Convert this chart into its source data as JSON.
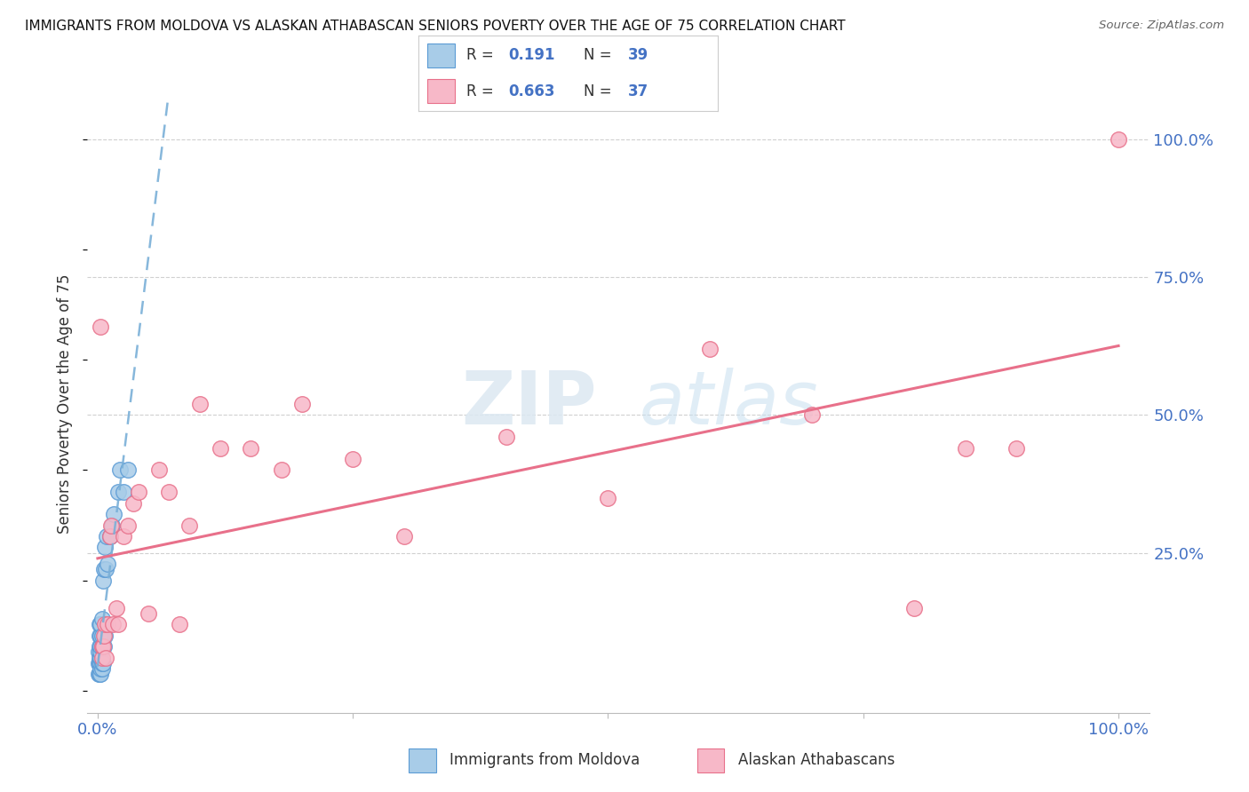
{
  "title": "IMMIGRANTS FROM MOLDOVA VS ALASKAN ATHABASCAN SENIORS POVERTY OVER THE AGE OF 75 CORRELATION CHART",
  "source": "Source: ZipAtlas.com",
  "ylabel": "Seniors Poverty Over the Age of 75",
  "legend_label1": "Immigrants from Moldova",
  "legend_label2": "Alaskan Athabascans",
  "R1": "0.191",
  "N1": "39",
  "R2": "0.663",
  "N2": "37",
  "color_blue": "#a8cce8",
  "color_pink": "#f7b8c8",
  "color_blue_edge": "#5b9bd5",
  "color_pink_edge": "#e8708a",
  "color_blue_line": "#7ab0d8",
  "color_pink_line": "#e8708a",
  "color_blue_text": "#4472c4",
  "watermark_zip": "ZIP",
  "watermark_atlas": "atlas",
  "blue_x": [
    0.001,
    0.001,
    0.001,
    0.002,
    0.002,
    0.002,
    0.002,
    0.002,
    0.002,
    0.003,
    0.003,
    0.003,
    0.003,
    0.003,
    0.003,
    0.003,
    0.003,
    0.004,
    0.004,
    0.004,
    0.004,
    0.004,
    0.005,
    0.005,
    0.005,
    0.006,
    0.006,
    0.007,
    0.007,
    0.008,
    0.009,
    0.01,
    0.012,
    0.014,
    0.016,
    0.02,
    0.022,
    0.025,
    0.03
  ],
  "blue_y": [
    0.03,
    0.05,
    0.07,
    0.03,
    0.05,
    0.06,
    0.08,
    0.1,
    0.12,
    0.03,
    0.04,
    0.05,
    0.06,
    0.07,
    0.08,
    0.1,
    0.12,
    0.04,
    0.05,
    0.08,
    0.1,
    0.13,
    0.05,
    0.08,
    0.2,
    0.08,
    0.22,
    0.1,
    0.26,
    0.22,
    0.28,
    0.23,
    0.28,
    0.3,
    0.32,
    0.36,
    0.4,
    0.36,
    0.4
  ],
  "pink_x": [
    0.003,
    0.004,
    0.004,
    0.005,
    0.006,
    0.007,
    0.008,
    0.01,
    0.012,
    0.013,
    0.015,
    0.018,
    0.02,
    0.025,
    0.03,
    0.035,
    0.04,
    0.05,
    0.06,
    0.07,
    0.08,
    0.09,
    0.1,
    0.12,
    0.15,
    0.18,
    0.2,
    0.25,
    0.3,
    0.4,
    0.5,
    0.6,
    0.7,
    0.8,
    0.85,
    0.9,
    1.0
  ],
  "pink_y": [
    0.66,
    0.06,
    0.08,
    0.08,
    0.1,
    0.12,
    0.06,
    0.12,
    0.28,
    0.3,
    0.12,
    0.15,
    0.12,
    0.28,
    0.3,
    0.34,
    0.36,
    0.14,
    0.4,
    0.36,
    0.12,
    0.3,
    0.52,
    0.44,
    0.44,
    0.4,
    0.52,
    0.42,
    0.28,
    0.46,
    0.35,
    0.62,
    0.5,
    0.15,
    0.44,
    0.44,
    1.0
  ]
}
